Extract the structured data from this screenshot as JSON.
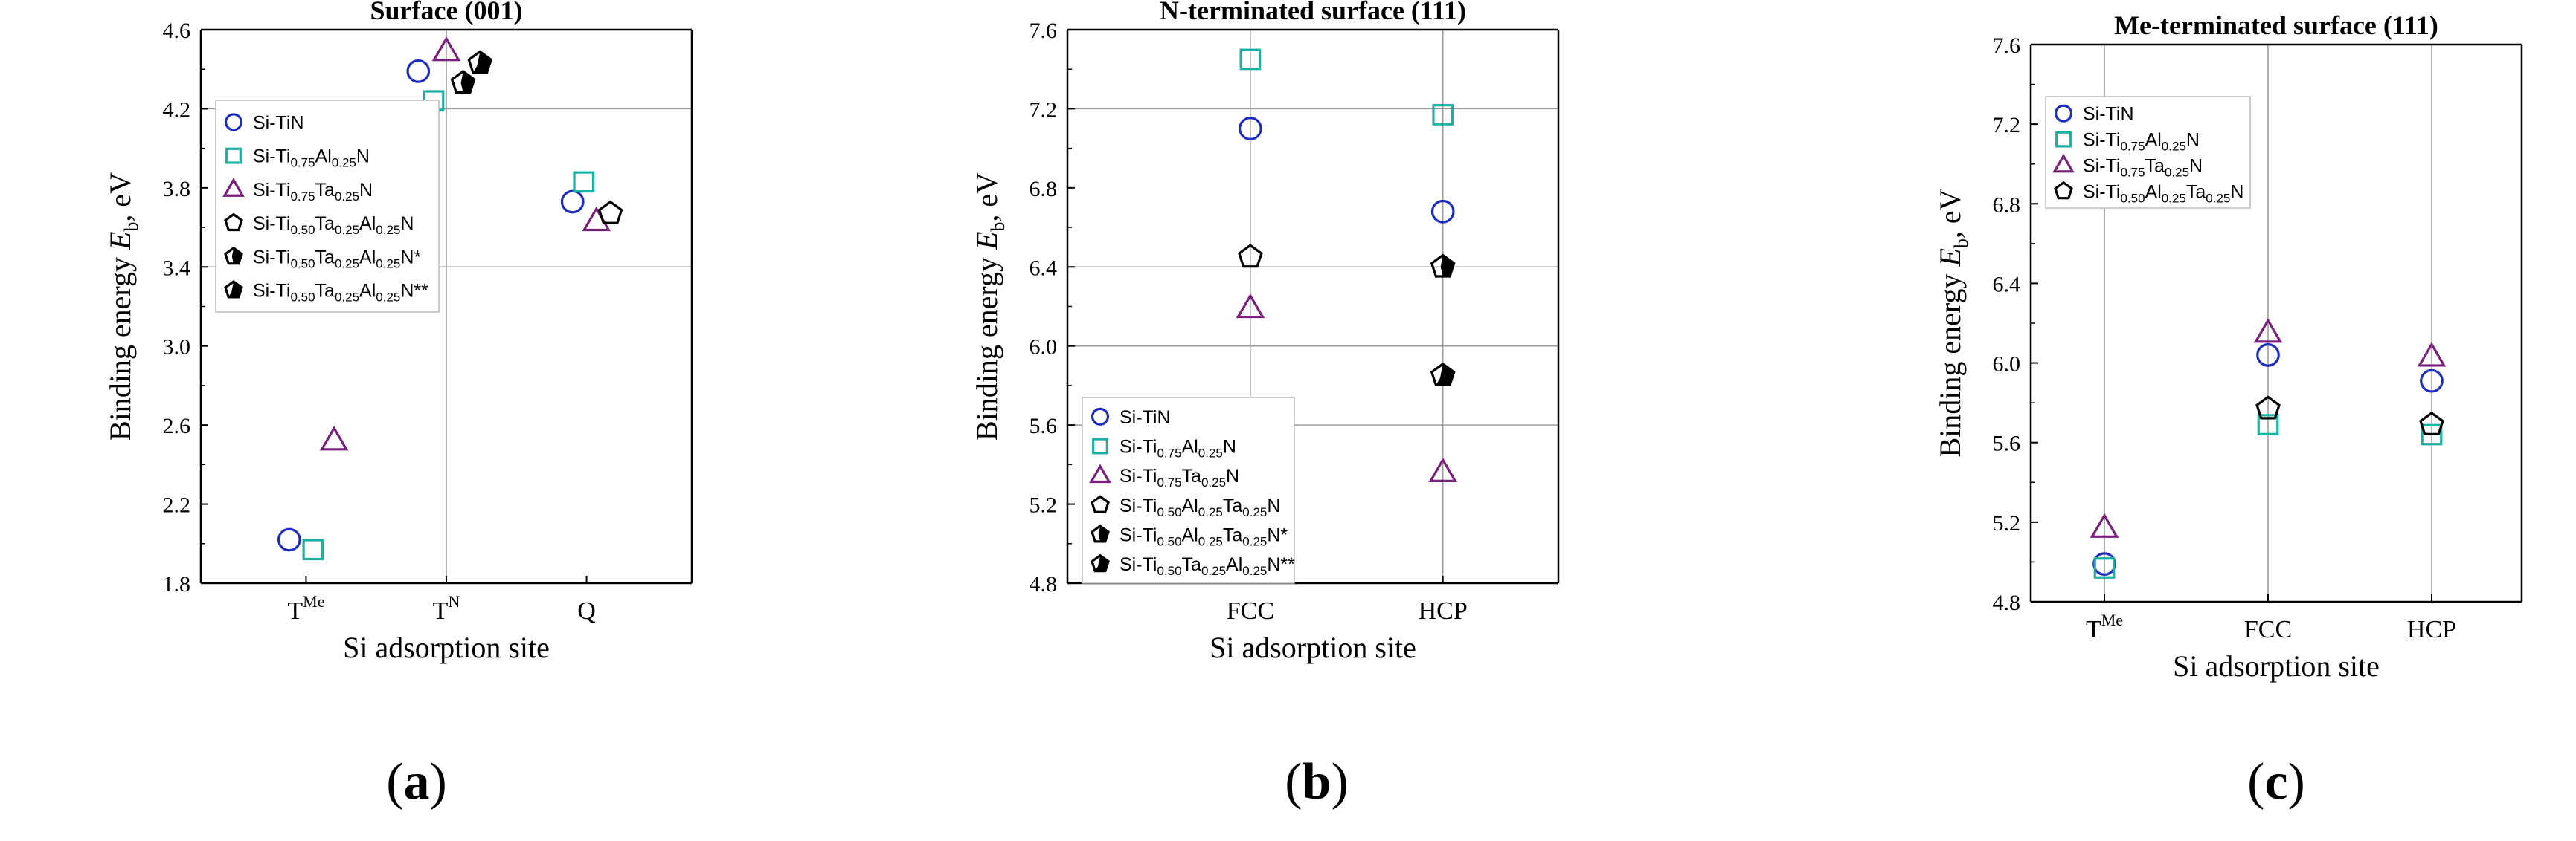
{
  "chart_data": [
    {
      "type": "scatter",
      "panel_label": "a",
      "title": "Surface (001)",
      "xlabel": "Si adsorption site",
      "ylabel": "Binding energy E_b, eV",
      "categories": [
        {
          "base": "T",
          "sup": "Me"
        },
        {
          "base": "T",
          "sup": "N"
        },
        {
          "base": "Q",
          "sup": ""
        }
      ],
      "ylim": [
        1.8,
        4.6
      ],
      "yticks": [
        "1.8",
        "2.2",
        "2.6",
        "3.0",
        "3.4",
        "3.8",
        "4.2",
        "4.6"
      ],
      "legend_position": "top-left",
      "series": [
        {
          "name": "Si-TiN",
          "parts": [
            {
              "t": "Si-TiN"
            }
          ],
          "marker": "circle",
          "color": "#1f2dbf",
          "filled": false,
          "points": [
            {
              "x": 0,
              "dx": -0.12,
              "y": 2.02
            },
            {
              "x": 1,
              "dx": -0.2,
              "y": 4.39
            },
            {
              "x": 2,
              "dx": -0.1,
              "y": 3.73
            }
          ]
        },
        {
          "name": "Si-Ti0.75Al0.25N",
          "parts": [
            {
              "t": "Si-Ti"
            },
            {
              "t": "0.75",
              "s": "sub"
            },
            {
              "t": "Al"
            },
            {
              "t": "0.25",
              "s": "sub"
            },
            {
              "t": "N"
            }
          ],
          "marker": "square",
          "color": "#19b2a2",
          "filled": false,
          "points": [
            {
              "x": 0,
              "dx": 0.05,
              "y": 1.97
            },
            {
              "x": 1,
              "dx": -0.09,
              "y": 4.24
            },
            {
              "x": 2,
              "dx": -0.02,
              "y": 3.83
            }
          ]
        },
        {
          "name": "Si-Ti0.75Ta0.25N",
          "parts": [
            {
              "t": "Si-Ti"
            },
            {
              "t": "0.75",
              "s": "sub"
            },
            {
              "t": "Ta"
            },
            {
              "t": "0.25",
              "s": "sub"
            },
            {
              "t": "N"
            }
          ],
          "marker": "triangle",
          "color": "#7a1f7c",
          "filled": false,
          "points": [
            {
              "x": 0,
              "dx": 0.2,
              "y": 2.52
            },
            {
              "x": 1,
              "dx": 0.0,
              "y": 4.49
            },
            {
              "x": 2,
              "dx": 0.07,
              "y": 3.63
            }
          ]
        },
        {
          "name": "Si-Ti0.50Ta0.25Al0.25N",
          "parts": [
            {
              "t": "Si-Ti"
            },
            {
              "t": "0.50",
              "s": "sub"
            },
            {
              "t": "Ta"
            },
            {
              "t": "0.25",
              "s": "sub"
            },
            {
              "t": "Al"
            },
            {
              "t": "0.25",
              "s": "sub"
            },
            {
              "t": "N"
            }
          ],
          "marker": "pentagon",
          "color": "#000000",
          "filled": false,
          "points": [
            {
              "x": 2,
              "dx": 0.17,
              "y": 3.67
            }
          ]
        },
        {
          "name": "Si-Ti0.50Ta0.25Al0.25N*",
          "parts": [
            {
              "t": "Si-Ti"
            },
            {
              "t": "0.50",
              "s": "sub"
            },
            {
              "t": "Ta"
            },
            {
              "t": "0.25",
              "s": "sub"
            },
            {
              "t": "Al"
            },
            {
              "t": "0.25",
              "s": "sub"
            },
            {
              "t": "N*"
            }
          ],
          "marker": "pentagon",
          "color": "#000000",
          "filled": "half",
          "points": [
            {
              "x": 1,
              "dx": 0.12,
              "y": 4.33
            }
          ]
        },
        {
          "name": "Si-Ti0.50Ta0.25Al0.25N**",
          "parts": [
            {
              "t": "Si-Ti"
            },
            {
              "t": "0.50",
              "s": "sub"
            },
            {
              "t": "Ta"
            },
            {
              "t": "0.25",
              "s": "sub"
            },
            {
              "t": "Al"
            },
            {
              "t": "0.25",
              "s": "sub"
            },
            {
              "t": "N**"
            }
          ],
          "marker": "pentagon",
          "color": "#000000",
          "filled": "more",
          "points": [
            {
              "x": 1,
              "dx": 0.24,
              "y": 4.43
            }
          ]
        }
      ]
    },
    {
      "type": "scatter",
      "panel_label": "b",
      "title": "N-terminated surface (111)",
      "xlabel": "Si adsorption site",
      "ylabel": "Binding energy E_b, eV",
      "categories": [
        {
          "base": "FCC",
          "sup": ""
        },
        {
          "base": "HCP",
          "sup": ""
        }
      ],
      "ylim": [
        4.8,
        7.6
      ],
      "yticks": [
        "4.8",
        "5.2",
        "5.6",
        "6.0",
        "6.4",
        "6.8",
        "7.2",
        "7.6"
      ],
      "legend_position": "bottom-left",
      "series": [
        {
          "name": "Si-TiN",
          "parts": [
            {
              "t": "Si-TiN"
            }
          ],
          "marker": "circle",
          "color": "#1f2dbf",
          "filled": false,
          "points": [
            {
              "x": 0,
              "dx": 0,
              "y": 7.1
            },
            {
              "x": 1,
              "dx": 0,
              "y": 6.68
            }
          ]
        },
        {
          "name": "Si-Ti0.75Al0.25N",
          "parts": [
            {
              "t": "Si-Ti"
            },
            {
              "t": "0.75",
              "s": "sub"
            },
            {
              "t": "Al"
            },
            {
              "t": "0.25",
              "s": "sub"
            },
            {
              "t": "N"
            }
          ],
          "marker": "square",
          "color": "#19b2a2",
          "filled": false,
          "points": [
            {
              "x": 0,
              "dx": 0,
              "y": 7.45
            },
            {
              "x": 1,
              "dx": 0,
              "y": 7.17
            }
          ]
        },
        {
          "name": "Si-Ti0.75Ta0.25N",
          "parts": [
            {
              "t": "Si-Ti"
            },
            {
              "t": "0.75",
              "s": "sub"
            },
            {
              "t": "Ta"
            },
            {
              "t": "0.25",
              "s": "sub"
            },
            {
              "t": "N"
            }
          ],
          "marker": "triangle",
          "color": "#7a1f7c",
          "filled": false,
          "points": [
            {
              "x": 0,
              "dx": 0,
              "y": 6.19
            },
            {
              "x": 1,
              "dx": 0,
              "y": 5.36
            }
          ]
        },
        {
          "name": "Si-Ti0.50Al0.25Ta0.25N",
          "parts": [
            {
              "t": "Si-Ti"
            },
            {
              "t": "0.50",
              "s": "sub"
            },
            {
              "t": "Al"
            },
            {
              "t": "0.25",
              "s": "sub"
            },
            {
              "t": "Ta"
            },
            {
              "t": "0.25",
              "s": "sub"
            },
            {
              "t": "N"
            }
          ],
          "marker": "pentagon",
          "color": "#000000",
          "filled": false,
          "points": [
            {
              "x": 0,
              "dx": 0,
              "y": 6.45
            }
          ]
        },
        {
          "name": "Si-Ti0.50Al0.25Ta0.25N*",
          "parts": [
            {
              "t": "Si-Ti"
            },
            {
              "t": "0.50",
              "s": "sub"
            },
            {
              "t": "Al"
            },
            {
              "t": "0.25",
              "s": "sub"
            },
            {
              "t": "Ta"
            },
            {
              "t": "0.25",
              "s": "sub"
            },
            {
              "t": "N*"
            }
          ],
          "marker": "pentagon",
          "color": "#000000",
          "filled": "half",
          "points": [
            {
              "x": 1,
              "dx": 0,
              "y": 6.4
            }
          ]
        },
        {
          "name": "Si-Ti0.50Ta0.25Al0.25N**",
          "parts": [
            {
              "t": "Si-Ti"
            },
            {
              "t": "0.50",
              "s": "sub"
            },
            {
              "t": "Ta"
            },
            {
              "t": "0.25",
              "s": "sub"
            },
            {
              "t": "Al"
            },
            {
              "t": "0.25",
              "s": "sub"
            },
            {
              "t": "N**"
            }
          ],
          "marker": "pentagon",
          "color": "#000000",
          "filled": "more",
          "points": [
            {
              "x": 1,
              "dx": 0,
              "y": 5.85
            }
          ]
        }
      ]
    },
    {
      "type": "scatter",
      "panel_label": "c",
      "title": "Me-terminated surface (111)",
      "xlabel": "Si adsorption site",
      "ylabel": "Binding energy E_b, eV",
      "categories": [
        {
          "base": "T",
          "sup": "Me"
        },
        {
          "base": "FCC",
          "sup": ""
        },
        {
          "base": "HCP",
          "sup": ""
        }
      ],
      "ylim": [
        4.8,
        7.6
      ],
      "yticks": [
        "4.8",
        "5.2",
        "5.6",
        "6.0",
        "6.4",
        "6.8",
        "7.2",
        "7.6"
      ],
      "legend_position": "top-left",
      "series": [
        {
          "name": "Si-TiN",
          "parts": [
            {
              "t": "Si-TiN"
            }
          ],
          "marker": "circle",
          "color": "#1f2dbf",
          "filled": false,
          "points": [
            {
              "x": 0,
              "dx": 0,
              "y": 4.99
            },
            {
              "x": 1,
              "dx": 0,
              "y": 6.04
            },
            {
              "x": 2,
              "dx": 0,
              "y": 5.91
            }
          ]
        },
        {
          "name": "Si-Ti0.75Al0.25N",
          "parts": [
            {
              "t": "Si-Ti"
            },
            {
              "t": "0.75",
              "s": "sub"
            },
            {
              "t": "Al"
            },
            {
              "t": "0.25",
              "s": "sub"
            },
            {
              "t": "N"
            }
          ],
          "marker": "square",
          "color": "#19b2a2",
          "filled": false,
          "points": [
            {
              "x": 0,
              "dx": 0,
              "y": 4.97
            },
            {
              "x": 1,
              "dx": 0,
              "y": 5.69
            },
            {
              "x": 2,
              "dx": 0,
              "y": 5.64
            }
          ]
        },
        {
          "name": "Si-Ti0.75Ta0.25N",
          "parts": [
            {
              "t": "Si-Ti"
            },
            {
              "t": "0.75",
              "s": "sub"
            },
            {
              "t": "Ta"
            },
            {
              "t": "0.25",
              "s": "sub"
            },
            {
              "t": "N"
            }
          ],
          "marker": "triangle",
          "color": "#7a1f7c",
          "filled": false,
          "points": [
            {
              "x": 0,
              "dx": 0,
              "y": 5.17
            },
            {
              "x": 1,
              "dx": 0,
              "y": 6.15
            },
            {
              "x": 2,
              "dx": 0,
              "y": 6.03
            }
          ]
        },
        {
          "name": "Si-Ti0.50Al0.25Ta0.25N",
          "parts": [
            {
              "t": "Si-Ti"
            },
            {
              "t": "0.50",
              "s": "sub"
            },
            {
              "t": "Al"
            },
            {
              "t": "0.25",
              "s": "sub"
            },
            {
              "t": "Ta"
            },
            {
              "t": "0.25",
              "s": "sub"
            },
            {
              "t": "N"
            }
          ],
          "marker": "pentagon",
          "color": "#000000",
          "filled": false,
          "points": [
            {
              "x": 1,
              "dx": 0,
              "y": 5.77
            },
            {
              "x": 2,
              "dx": 0,
              "y": 5.69
            }
          ]
        }
      ]
    }
  ]
}
